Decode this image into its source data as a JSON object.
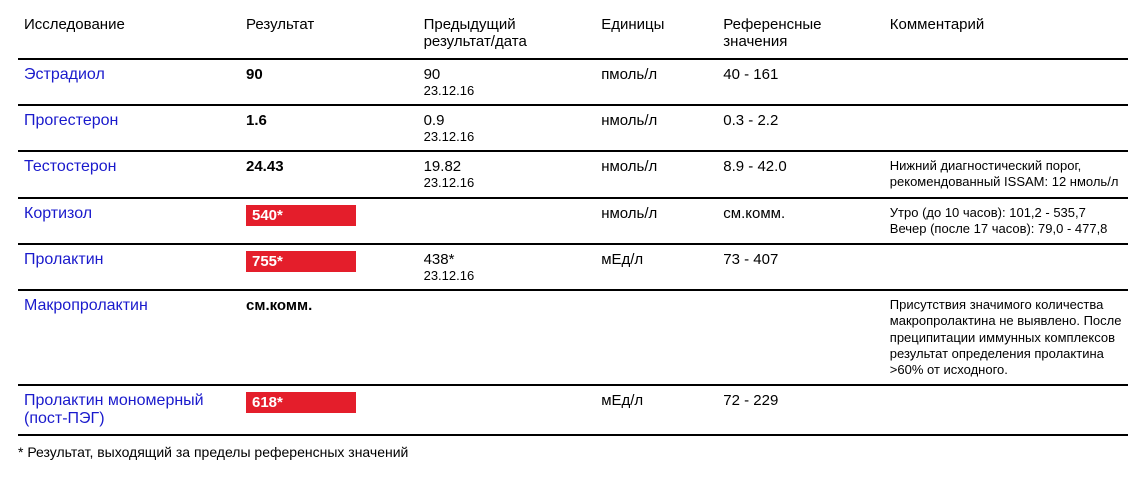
{
  "columns": {
    "test": "Исследование",
    "result": "Результат",
    "previous": "Предыдущий результат/дата",
    "units": "Единицы",
    "reference": "Референсные значения",
    "comment": "Комментарий"
  },
  "col_widths": {
    "test": "20%",
    "result": "16%",
    "previous": "16%",
    "units": "11%",
    "reference": "15%",
    "comment": "22%"
  },
  "colors": {
    "test_name": "#1a1acc",
    "flag_bg": "#e41e2b",
    "flag_text": "#ffffff",
    "border": "#000000",
    "background": "#ffffff"
  },
  "rows": [
    {
      "test": "Эстрадиол",
      "result": "90",
      "flagged": false,
      "prev_value": "90",
      "prev_date": "23.12.16",
      "units": "пмоль/л",
      "reference": "40 - 161",
      "comment": ""
    },
    {
      "test": "Прогестерон",
      "result": "1.6",
      "flagged": false,
      "prev_value": "0.9",
      "prev_date": "23.12.16",
      "units": "нмоль/л",
      "reference": "0.3 - 2.2",
      "comment": ""
    },
    {
      "test": "Тестостерон",
      "result": "24.43",
      "flagged": false,
      "prev_value": "19.82",
      "prev_date": "23.12.16",
      "units": "нмоль/л",
      "reference": "8.9 - 42.0",
      "comment": "Нижний диагностический порог, рекомендованный ISSAM: 12 нмоль/л"
    },
    {
      "test": "Кортизол",
      "result": "540*",
      "flagged": true,
      "prev_value": "",
      "prev_date": "",
      "units": "нмоль/л",
      "reference": "см.комм.",
      "comment": "Утро (до 10 часов): 101,2 - 535,7 Вечер (после 17 часов): 79,0 - 477,8"
    },
    {
      "test": "Пролактин",
      "result": "755*",
      "flagged": true,
      "prev_value": "438*",
      "prev_date": "23.12.16",
      "units": "мЕд/л",
      "reference": "73 - 407",
      "comment": ""
    },
    {
      "test": "Макропролактин",
      "result": "см.комм.",
      "flagged": false,
      "prev_value": "",
      "prev_date": "",
      "units": "",
      "reference": "",
      "comment": "Присутствия значимого количества макропролактина не выявлено. После преципитации иммунных комплексов результат определения пролактина >60% от исходного."
    },
    {
      "test": "Пролактин мономерный (пост-ПЭГ)",
      "result": "618*",
      "flagged": true,
      "prev_value": "",
      "prev_date": "",
      "units": "мЕд/л",
      "reference": "72 - 229",
      "comment": ""
    }
  ],
  "footnote": "* Результат, выходящий за пределы референсных значений"
}
